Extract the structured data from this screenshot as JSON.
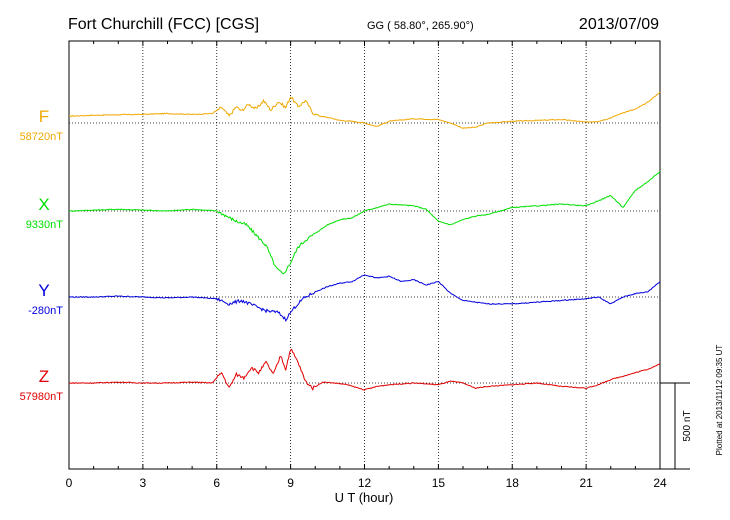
{
  "header": {
    "station": "Fort Churchill (FCC)  [CGS]",
    "coords": "GG ( 58.80°, 265.90°)",
    "date": "2013/07/09"
  },
  "footer": {
    "plotted": "Plotted at 2013/11/12 09:35 UT"
  },
  "scale": {
    "label": "500 nT",
    "value_nT": 500
  },
  "chart_data": {
    "type": "line",
    "title": "Fort Churchill (FCC)  [CGS]",
    "xlabel": "U T (hour)",
    "ylabel": "",
    "xlim": [
      0,
      24
    ],
    "xticks": [
      0,
      3,
      6,
      9,
      12,
      15,
      18,
      21,
      24
    ],
    "xtick_labels": [
      "0",
      "3",
      "6",
      "9",
      "12",
      "15",
      "18",
      "21",
      "24"
    ],
    "grid": true,
    "units": "nT",
    "series": [
      {
        "name": "F",
        "baseline_label": "58720nT",
        "baseline": 58720,
        "color": "#f0a800",
        "x": [
          0,
          1,
          2,
          3,
          4,
          5,
          5.8,
          6.2,
          6.5,
          6.8,
          7.0,
          7.3,
          7.6,
          7.9,
          8.2,
          8.5,
          8.8,
          9.0,
          9.3,
          9.6,
          9.9,
          10.2,
          10.6,
          11,
          11.5,
          12,
          12.5,
          13,
          14,
          15,
          15.5,
          16,
          16.5,
          17,
          18,
          19,
          20,
          21,
          21.5,
          22,
          22.5,
          23,
          23.5,
          24
        ],
        "y": [
          40,
          45,
          48,
          50,
          55,
          50,
          55,
          90,
          40,
          95,
          70,
          110,
          80,
          130,
          75,
          125,
          90,
          155,
          95,
          130,
          60,
          40,
          30,
          15,
          10,
          0,
          -20,
          10,
          25,
          20,
          0,
          -30,
          -25,
          0,
          10,
          15,
          20,
          5,
          10,
          30,
          60,
          80,
          120,
          180
        ]
      },
      {
        "name": "X",
        "baseline_label": "9330nT",
        "baseline": 9330,
        "color": "#00e000",
        "x": [
          0,
          1,
          2,
          3,
          4,
          5,
          6,
          6.4,
          6.8,
          7.2,
          7.6,
          8.0,
          8.4,
          8.7,
          9.0,
          9.3,
          9.6,
          10,
          10.5,
          11,
          11.5,
          12,
          12.5,
          13,
          14,
          14.5,
          15,
          15.5,
          16,
          16.5,
          17,
          18,
          19,
          20,
          21,
          21.5,
          22,
          22.5,
          23,
          23.5,
          24
        ],
        "y": [
          0,
          5,
          10,
          5,
          0,
          10,
          0,
          -30,
          -60,
          -80,
          -140,
          -200,
          -330,
          -370,
          -300,
          -210,
          -170,
          -130,
          -80,
          -50,
          -40,
          0,
          20,
          40,
          30,
          10,
          -60,
          -80,
          -50,
          -30,
          -20,
          20,
          30,
          40,
          30,
          60,
          90,
          20,
          120,
          170,
          230
        ]
      },
      {
        "name": "Y",
        "baseline_label": "-280nT",
        "baseline": -280,
        "color": "#0000dd",
        "x": [
          0,
          1,
          2,
          3,
          4,
          5,
          6,
          6.5,
          7,
          7.5,
          8,
          8.5,
          8.8,
          9.1,
          9.5,
          10,
          10.5,
          11,
          11.5,
          12,
          12.5,
          13,
          13.5,
          14,
          14.5,
          15,
          15.5,
          16,
          17,
          18,
          19,
          20,
          21,
          21.5,
          22,
          22.5,
          23,
          23.5,
          24
        ],
        "y": [
          0,
          0,
          5,
          0,
          -5,
          0,
          -10,
          -40,
          -20,
          -50,
          -80,
          -90,
          -130,
          -70,
          -10,
          30,
          60,
          80,
          90,
          130,
          110,
          120,
          90,
          100,
          70,
          90,
          20,
          -20,
          -40,
          -40,
          -30,
          -20,
          -10,
          0,
          -40,
          0,
          20,
          30,
          90
        ]
      },
      {
        "name": "Z",
        "baseline_label": "57980nT",
        "baseline": 57980,
        "color": "#e00000",
        "x": [
          0,
          1,
          2,
          3,
          4,
          5,
          5.8,
          6.2,
          6.5,
          6.8,
          7.1,
          7.4,
          7.7,
          8.0,
          8.3,
          8.6,
          8.8,
          9.0,
          9.3,
          9.6,
          9.9,
          10.3,
          10.8,
          11.3,
          12,
          12.5,
          13,
          14,
          15,
          15.5,
          16,
          16.5,
          17,
          18,
          19,
          20,
          21,
          21.5,
          22,
          22.5,
          23,
          23.5,
          24
        ],
        "y": [
          0,
          0,
          5,
          0,
          0,
          5,
          0,
          60,
          -30,
          50,
          30,
          90,
          60,
          120,
          50,
          160,
          80,
          200,
          120,
          10,
          -30,
          5,
          0,
          -10,
          -40,
          -20,
          -10,
          0,
          -10,
          10,
          0,
          -30,
          -20,
          -10,
          0,
          -20,
          -30,
          -10,
          20,
          40,
          60,
          80,
          110
        ]
      }
    ]
  }
}
